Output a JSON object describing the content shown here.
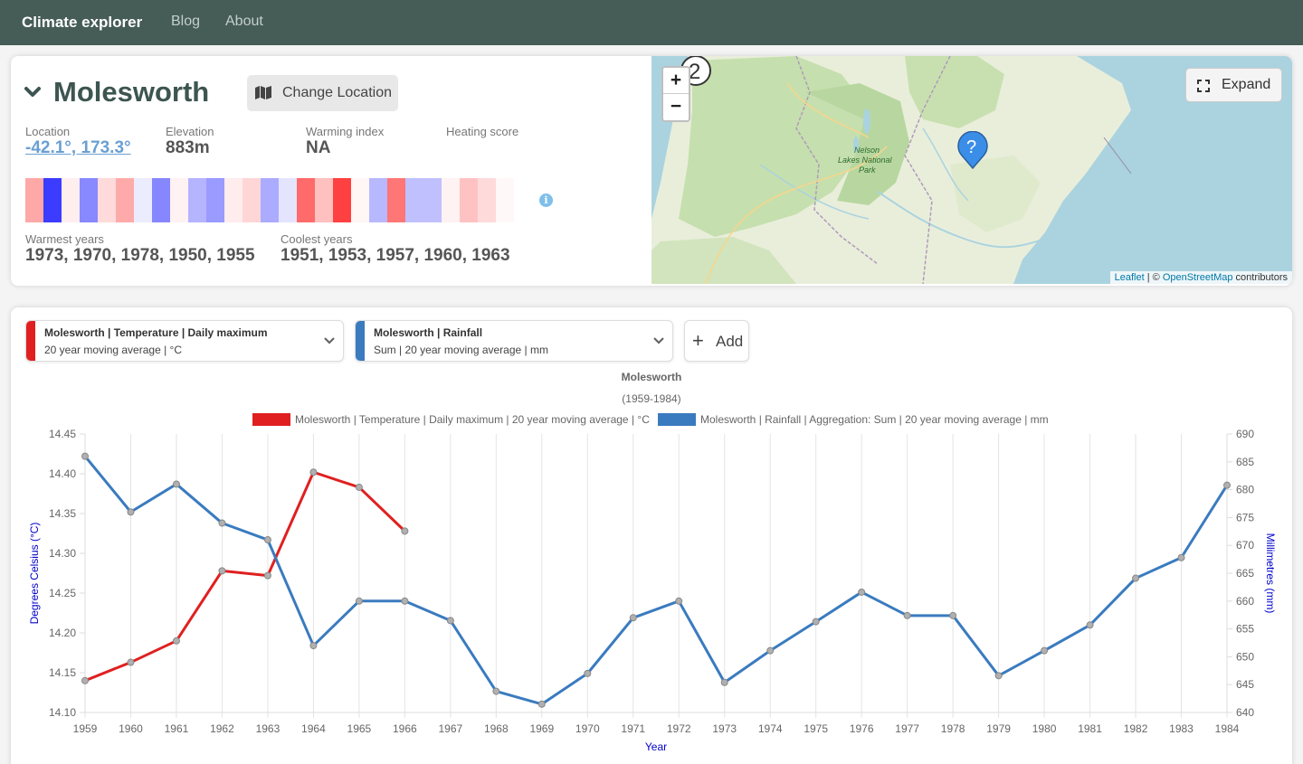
{
  "nav": {
    "brand": "Climate explorer",
    "links": [
      "Blog",
      "About"
    ]
  },
  "location": {
    "name": "Molesworth",
    "change_label": "Change Location",
    "stats": [
      {
        "label": "Location",
        "value": "-42.1°, 173.3°",
        "link": true
      },
      {
        "label": "Elevation",
        "value": "883m"
      },
      {
        "label": "Warming index",
        "value": "NA"
      },
      {
        "label": "Heating score",
        "value": ""
      }
    ],
    "stripes": [
      "#ffa8a8",
      "#3c3cff",
      "#ffeeee",
      "#8888ff",
      "#ffdada",
      "#ffaaaa",
      "#ececff",
      "#8686ff",
      "#fff2f2",
      "#b4b4ff",
      "#9a9aff",
      "#ffecec",
      "#ffd6d6",
      "#ababff",
      "#e4e4ff",
      "#ff6a6a",
      "#ffc0c0",
      "#ff4040",
      "#fff6f6",
      "#b8b8ff",
      "#ff7676",
      "#c0c0ff",
      "#c0c0ff",
      "#fff2f2",
      "#ffc2c2",
      "#ffdada",
      "#fff8f8",
      "#ffffff"
    ],
    "warmest_label": "Warmest years",
    "warmest_value": "1973, 1970, 1978, 1950, 1955",
    "coolest_label": "Coolest years",
    "coolest_value": "1951, 1953, 1957, 1960, 1963",
    "info_icon": "info-circle-icon"
  },
  "map": {
    "expand_label": "Expand",
    "zoom_in": "+",
    "zoom_out": "−",
    "cluster_count": "2",
    "park_label": [
      "Nelson",
      "Lakes National",
      "Park"
    ],
    "attribution_leaflet": "Leaflet",
    "attribution_sep": " | © ",
    "attribution_osm": "OpenStreetMap",
    "attribution_tail": " contributors",
    "water_color": "#aad3df",
    "land_color": "#e9eedb",
    "marker_color": "#3b8ee8"
  },
  "series_controls": [
    {
      "title": "Molesworth | Temperature | Daily maximum",
      "subtitle": "20 year moving average | °C",
      "color": "#e02020"
    },
    {
      "title": "Molesworth | Rainfall",
      "subtitle": "Sum | 20 year moving average | mm",
      "color": "#3a7bbf"
    }
  ],
  "add_label": "Add",
  "chart_data": {
    "type": "line",
    "title": "Molesworth",
    "subtitle": "(1959-1984)",
    "xlabel": "Year",
    "ylabel_left": "Degrees Celsius (°C)",
    "ylabel_right": "Millimetres (mm)",
    "x": [
      1959,
      1960,
      1961,
      1962,
      1963,
      1964,
      1965,
      1966,
      1967,
      1968,
      1969,
      1970,
      1971,
      1972,
      1973,
      1974,
      1975,
      1976,
      1977,
      1978,
      1979,
      1980,
      1981,
      1982,
      1983,
      1984
    ],
    "ylim_left": [
      14.1,
      14.45
    ],
    "yticks_left": [
      "14.10",
      "14.15",
      "14.20",
      "14.25",
      "14.30",
      "14.35",
      "14.40",
      "14.45"
    ],
    "ylim_right": [
      640,
      690
    ],
    "yticks_right": [
      "640",
      "645",
      "650",
      "655",
      "660",
      "665",
      "670",
      "675",
      "680",
      "685",
      "690"
    ],
    "series": [
      {
        "name": "Molesworth | Temperature | Daily maximum | 20 year moving average | °C",
        "axis": "left",
        "color": "#e02020",
        "values": [
          14.14,
          14.163,
          14.19,
          14.278,
          14.272,
          14.402,
          14.383,
          14.328,
          null,
          null,
          null,
          null,
          null,
          null,
          null,
          null,
          null,
          null,
          null,
          null,
          null,
          null,
          null,
          null,
          null,
          null
        ]
      },
      {
        "name": "Molesworth | Rainfall | Aggregation: Sum | 20 year moving average | mm",
        "axis": "right",
        "color": "#3a7bbf",
        "values": [
          686,
          676,
          681,
          674,
          671,
          652,
          660,
          660,
          656.5,
          643.8,
          641.5,
          647,
          657,
          660,
          645.4,
          651.1,
          656.3,
          661.6,
          657.4,
          657.4,
          646.6,
          651.1,
          655.7,
          664.1,
          667.8,
          680.8
        ]
      }
    ],
    "grid": true,
    "legend_position": "top"
  }
}
